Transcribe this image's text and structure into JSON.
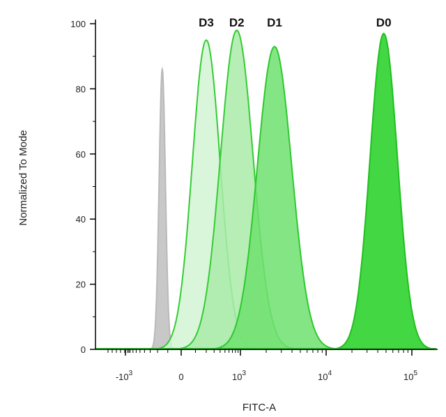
{
  "chart_data": {
    "type": "area",
    "title": "",
    "xlabel": "FITC-A",
    "ylabel": "Normalized To Mode",
    "x_scale": "biexponential",
    "ylim": [
      0,
      100
    ],
    "y_ticks": [
      0,
      20,
      40,
      60,
      80,
      100
    ],
    "x_ticks": [
      {
        "base": "-10",
        "exp": "3",
        "value": -1000
      },
      {
        "base": "0",
        "exp": "",
        "value": 0
      },
      {
        "base": "10",
        "exp": "3",
        "value": 1000
      },
      {
        "base": "10",
        "exp": "4",
        "value": 10000
      },
      {
        "base": "10",
        "exp": "5",
        "value": 100000
      }
    ],
    "grid": false,
    "series": [
      {
        "name": "",
        "color": "#b9b9b9",
        "fill": "#c8c8c8",
        "peak_x": -150,
        "peak_y": 86,
        "sigma_decades": 0.05
      },
      {
        "name": "D3",
        "color": "#33cc33",
        "fill": "#d4f5d4",
        "peak_x": 200,
        "peak_y": 95,
        "sigma_decades": 0.17
      },
      {
        "name": "D2",
        "color": "#33cc33",
        "fill": "#a9eba9",
        "peak_x": 850,
        "peak_y": 98,
        "sigma_decades": 0.2
      },
      {
        "name": "D1",
        "color": "#2ec82e",
        "fill": "#6fe06f",
        "peak_x": 2500,
        "peak_y": 93,
        "sigma_decades": 0.2
      },
      {
        "name": "D0",
        "color": "#1fbf1f",
        "fill": "#22d022",
        "peak_x": 47000,
        "peak_y": 97,
        "sigma_decades": 0.16
      }
    ],
    "annotations": [
      "D3",
      "D2",
      "D1",
      "D0"
    ]
  }
}
